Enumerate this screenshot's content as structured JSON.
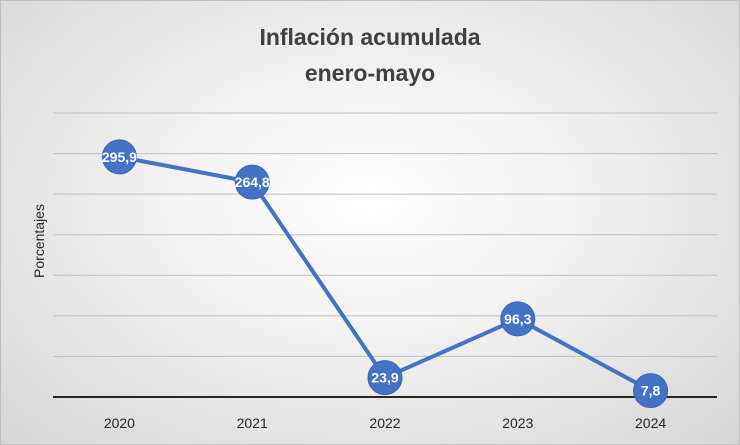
{
  "chart_data": {
    "type": "line",
    "title_lines": [
      "Inflación acumulada",
      "enero-mayo"
    ],
    "xlabel": "",
    "ylabel": "Porcentajes",
    "categories": [
      "2020",
      "2021",
      "2022",
      "2023",
      "2024"
    ],
    "series": [
      {
        "values": [
          295.9,
          264.8,
          23.9,
          96.3,
          7.8
        ]
      }
    ],
    "data_labels": [
      "295,9",
      "264,8",
      "23,9",
      "96,3",
      "7,8"
    ],
    "ylim": [
      0,
      350
    ],
    "grid": true,
    "legend": "none",
    "colors": {
      "series": "#4472c4",
      "grid": "#bfbfbf",
      "axis": "#262626"
    }
  }
}
